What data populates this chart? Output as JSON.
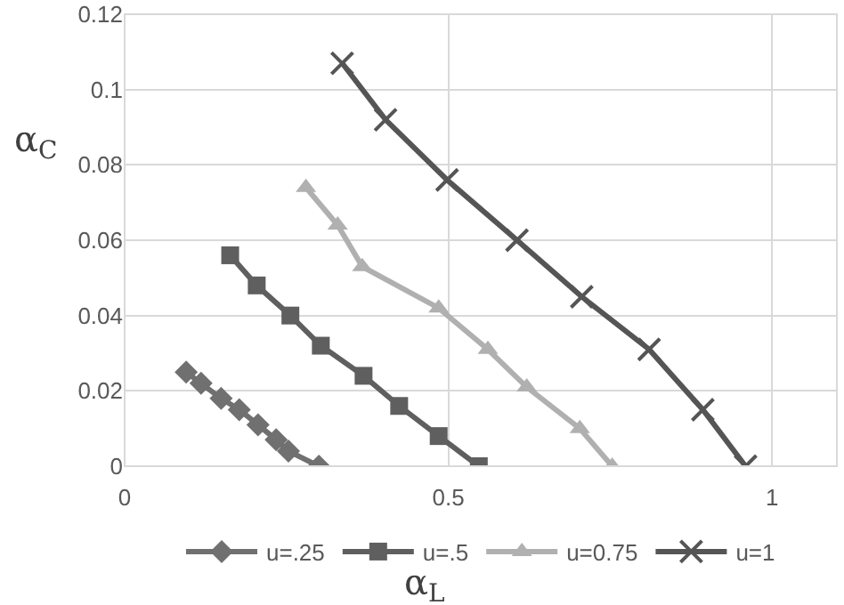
{
  "chart_data": {
    "type": "line",
    "xlabel": "α$_{L}$",
    "ylabel": "α$_{C}$",
    "xlim": [
      0,
      1.1
    ],
    "xticks": [
      0,
      0.5,
      1
    ],
    "ylim": [
      0,
      0.12
    ],
    "yticks": [
      0,
      0.02,
      0.04,
      0.06,
      0.08,
      0.1,
      0.12
    ],
    "grid": true,
    "legend": "bottom",
    "line_style": "solid",
    "series": [
      {
        "name": "u=.25",
        "color": "#707070",
        "marker": "diamond",
        "x": [
          0.095,
          0.118,
          0.149,
          0.177,
          0.206,
          0.234,
          0.253,
          0.3
        ],
        "values": [
          0.025,
          0.022,
          0.018,
          0.015,
          0.011,
          0.007,
          0.004,
          0
        ]
      },
      {
        "name": "u=.5",
        "color": "#5f5f5f",
        "marker": "square",
        "x": [
          0.163,
          0.204,
          0.256,
          0.303,
          0.369,
          0.424,
          0.485,
          0.547
        ],
        "values": [
          0.056,
          0.048,
          0.04,
          0.032,
          0.024,
          0.016,
          0.008,
          0
        ]
      },
      {
        "name": "u=0.75",
        "color": "#b0b0b0",
        "marker": "triangle",
        "x": [
          0.28,
          0.329,
          0.367,
          0.485,
          0.561,
          0.621,
          0.703,
          0.753
        ],
        "values": [
          0.074,
          0.064,
          0.053,
          0.042,
          0.031,
          0.021,
          0.01,
          0
        ]
      },
      {
        "name": "u=1",
        "color": "#555555",
        "marker": "cross",
        "x": [
          0.336,
          0.403,
          0.498,
          0.606,
          0.706,
          0.81,
          0.893,
          0.959
        ],
        "values": [
          0.107,
          0.092,
          0.076,
          0.06,
          0.045,
          0.031,
          0.015,
          0
        ]
      }
    ]
  }
}
